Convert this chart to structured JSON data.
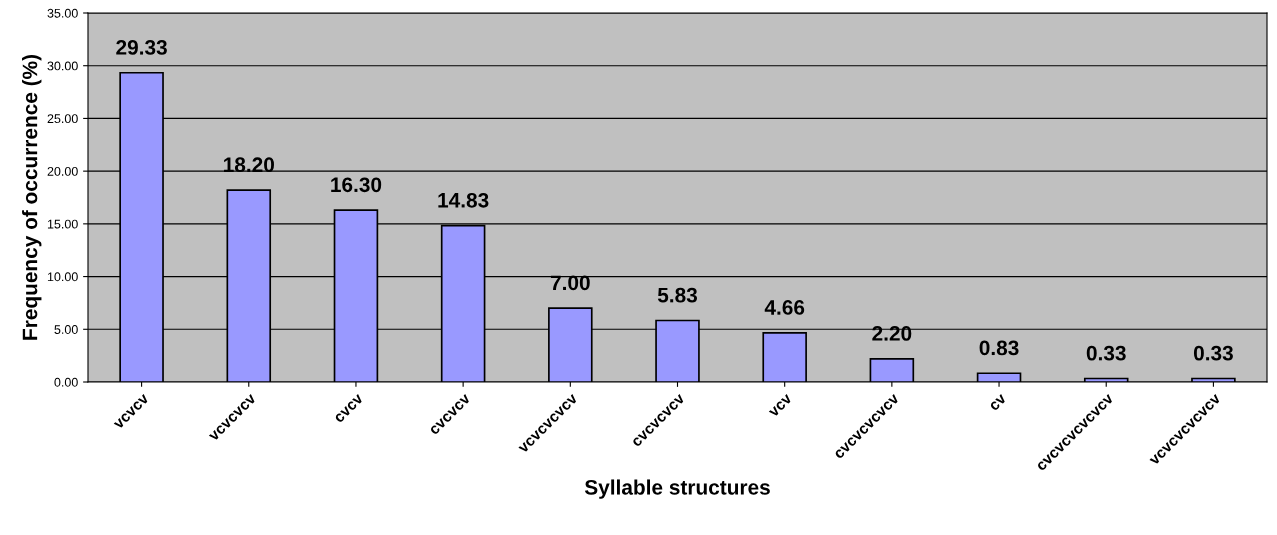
{
  "chart_data": {
    "type": "bar",
    "xlabel": "Syllable structures",
    "ylabel": "Frequency of occurrence (%)",
    "categories": [
      "vcvcv",
      "vcvcvcv",
      "cvcv",
      "cvcvcv",
      "vcvcvcvcv",
      "cvcvcvcv",
      "vcv",
      "cvcvcvcvcv",
      "cv",
      "cvcvcvcvcvcv",
      "vcvcvcvcvcv"
    ],
    "values": [
      29.33,
      18.2,
      16.3,
      14.83,
      7.0,
      5.83,
      4.66,
      2.2,
      0.83,
      0.33,
      0.33
    ],
    "value_labels": [
      "29.33",
      "18.20",
      "16.30",
      "14.83",
      "7.00",
      "5.83",
      "4.66",
      "2.20",
      "0.83",
      "0.33",
      "0.33"
    ],
    "color": "#9999ff",
    "ylim": [
      0,
      35
    ],
    "yticks": [
      {
        "value": 0,
        "label": "0.00"
      },
      {
        "value": 5,
        "label": "5.00"
      },
      {
        "value": 10,
        "label": "10.00"
      },
      {
        "value": 15,
        "label": "15.00"
      },
      {
        "value": 20,
        "label": "20.00"
      },
      {
        "value": 25,
        "label": "25.00"
      },
      {
        "value": 30,
        "label": "30.00"
      },
      {
        "value": 35,
        "label": "35.00"
      }
    ],
    "grid": "y"
  }
}
